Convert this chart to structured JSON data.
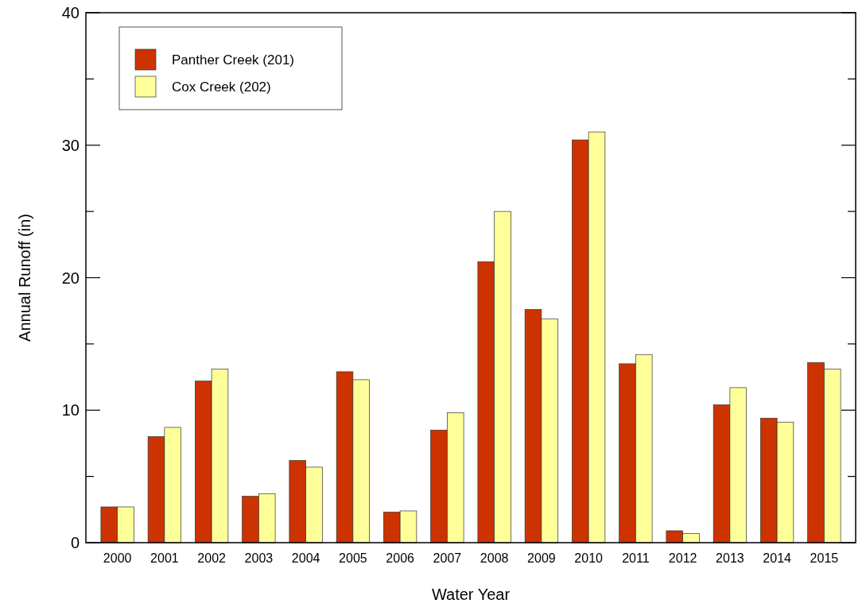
{
  "chart_data": {
    "type": "bar",
    "xlabel": "Water Year",
    "ylabel": "Annual Runoff (in)",
    "categories": [
      "2000",
      "2001",
      "2002",
      "2003",
      "2004",
      "2005",
      "2006",
      "2007",
      "2008",
      "2009",
      "2010",
      "2011",
      "2012",
      "2013",
      "2014",
      "2015"
    ],
    "series": [
      {
        "name": "Panther Creek (201)",
        "color": "#cc3300",
        "values": [
          2.7,
          8.0,
          12.2,
          3.5,
          6.2,
          12.9,
          2.3,
          8.5,
          21.2,
          17.6,
          30.4,
          13.5,
          0.9,
          10.4,
          9.4,
          13.6
        ]
      },
      {
        "name": "Cox Creek (202)",
        "color": "#ffff99",
        "values": [
          2.7,
          8.7,
          13.1,
          3.7,
          5.7,
          12.3,
          2.4,
          9.8,
          25.0,
          16.9,
          31.0,
          14.2,
          0.7,
          11.7,
          9.1,
          13.1
        ]
      }
    ],
    "ylim": [
      0,
      40
    ],
    "yticks": [
      0,
      {
        "value": 5,
        "label": null
      },
      10,
      {
        "value": 15,
        "label": null
      },
      20,
      {
        "value": 25,
        "label": null
      },
      30,
      {
        "value": 35,
        "label": null
      },
      40
    ],
    "grid": false,
    "legend": "top left"
  }
}
